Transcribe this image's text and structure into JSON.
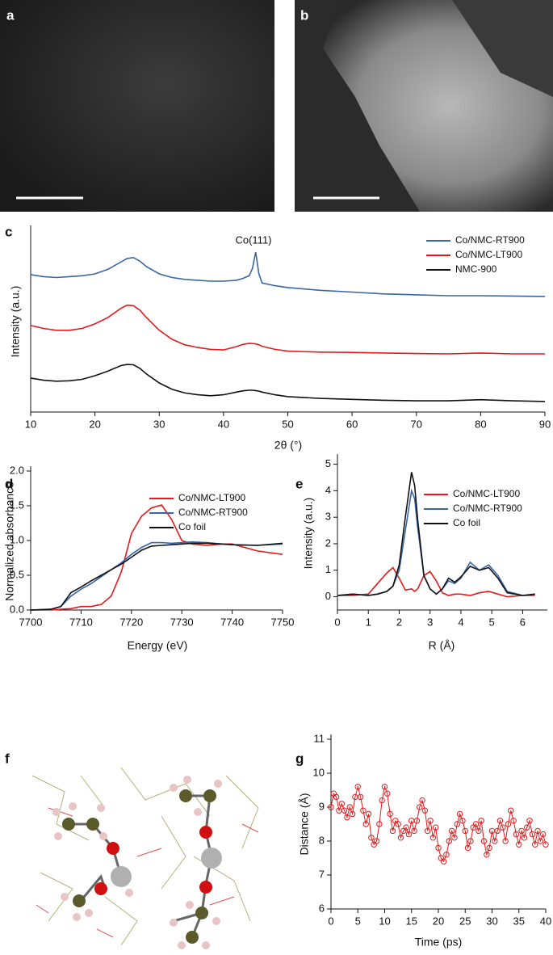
{
  "panel_labels": [
    "a",
    "b",
    "f"
  ],
  "chart_data": [
    {
      "type": "line",
      "panel": "c",
      "xlabel": "2θ (°)",
      "ylabel": "Intensity (a.u.)",
      "annotation": "Co(111)",
      "legend": "upper right",
      "xlim": [
        10,
        90
      ],
      "xticks": [
        10,
        20,
        30,
        40,
        50,
        60,
        70,
        80,
        90
      ],
      "ylim": [
        0,
        10
      ],
      "x": [
        10,
        12,
        14,
        16,
        18,
        20,
        22,
        24,
        25,
        26,
        27,
        28,
        30,
        32,
        34,
        36,
        38,
        40,
        42,
        43,
        44,
        44.5,
        45,
        45.5,
        46,
        48,
        50,
        55,
        60,
        65,
        70,
        75,
        80,
        85,
        90
      ],
      "series": [
        {
          "name": "Co/NMC-RT900",
          "color": "#3a66a6",
          "values": [
            7.56,
            7.45,
            7.4,
            7.45,
            7.5,
            7.6,
            7.85,
            8.25,
            8.45,
            8.5,
            8.3,
            8.0,
            7.6,
            7.4,
            7.3,
            7.25,
            7.2,
            7.2,
            7.25,
            7.35,
            7.5,
            7.9,
            8.8,
            7.6,
            7.1,
            6.95,
            6.85,
            6.7,
            6.6,
            6.5,
            6.45,
            6.4,
            6.4,
            6.38,
            6.36
          ]
        },
        {
          "name": "Co/NMC-LT900",
          "color": "#e41a1c",
          "values": [
            4.76,
            4.6,
            4.5,
            4.5,
            4.6,
            4.85,
            5.2,
            5.7,
            5.88,
            5.85,
            5.6,
            5.2,
            4.5,
            4.0,
            3.7,
            3.55,
            3.45,
            3.42,
            3.6,
            3.72,
            3.78,
            3.77,
            3.75,
            3.7,
            3.62,
            3.45,
            3.35,
            3.3,
            3.28,
            3.25,
            3.22,
            3.2,
            3.25,
            3.2,
            3.2
          ]
        },
        {
          "name": "NMC-900",
          "color": "#111111",
          "values": [
            1.87,
            1.75,
            1.7,
            1.72,
            1.8,
            2.0,
            2.25,
            2.55,
            2.62,
            2.6,
            2.4,
            2.1,
            1.6,
            1.25,
            1.05,
            0.95,
            0.9,
            0.95,
            1.1,
            1.17,
            1.2,
            1.2,
            1.18,
            1.15,
            1.1,
            0.95,
            0.85,
            0.75,
            0.7,
            0.65,
            0.62,
            0.62,
            0.68,
            0.62,
            0.58
          ]
        }
      ]
    },
    {
      "type": "line",
      "panel": "d",
      "xlabel": "Energy (eV)",
      "ylabel": "Normalized absorbance",
      "legend": "upper center",
      "xlim": [
        7700,
        7750
      ],
      "xticks": [
        7700,
        7710,
        7720,
        7730,
        7740,
        7750
      ],
      "ylim": [
        0,
        2.0
      ],
      "yticks": [
        {
          "value": 0,
          "label": "0.0"
        },
        0.5,
        {
          "value": 1,
          "label": "1.0"
        },
        1.5,
        {
          "value": 2,
          "label": "2.0"
        }
      ],
      "x": [
        7700,
        7704,
        7706,
        7708,
        7710,
        7712,
        7714,
        7716,
        7718,
        7720,
        7722,
        7724,
        7726,
        7728,
        7730,
        7732,
        7735,
        7738,
        7740,
        7745,
        7750
      ],
      "series": [
        {
          "name": "Co/NMC-LT900",
          "color": "#e41a1c",
          "values": [
            0,
            0,
            0.01,
            0.02,
            0.05,
            0.05,
            0.08,
            0.2,
            0.55,
            1.1,
            1.35,
            1.47,
            1.51,
            1.3,
            1.0,
            0.95,
            0.93,
            0.95,
            0.95,
            0.85,
            0.8
          ]
        },
        {
          "name": "Co/NMC-RT900",
          "color": "#3a66a6",
          "values": [
            0,
            0.01,
            0.05,
            0.2,
            0.3,
            0.38,
            0.48,
            0.58,
            0.68,
            0.8,
            0.9,
            0.97,
            0.97,
            0.96,
            0.97,
            0.98,
            0.97,
            0.95,
            0.94,
            0.93,
            0.95
          ]
        },
        {
          "name": "Co foil",
          "color": "#111111",
          "values": [
            0,
            0.01,
            0.05,
            0.25,
            0.33,
            0.42,
            0.5,
            0.58,
            0.66,
            0.76,
            0.86,
            0.92,
            0.93,
            0.94,
            0.95,
            0.96,
            0.96,
            0.95,
            0.94,
            0.93,
            0.96
          ]
        }
      ]
    },
    {
      "type": "line",
      "panel": "e",
      "xlabel": "R (Å)",
      "ylabel": "Intensity (a.u.)",
      "legend": "upper right",
      "xlim": [
        0,
        6.8
      ],
      "xticks": [
        0,
        1,
        2,
        3,
        4,
        5,
        6
      ],
      "ylim": [
        -0.5,
        5.2
      ],
      "yticks": [
        0,
        1,
        2,
        3,
        4,
        5
      ],
      "x": [
        0,
        0.5,
        1,
        1.3,
        1.6,
        1.8,
        2.0,
        2.2,
        2.4,
        2.5,
        2.6,
        2.8,
        3.0,
        3.2,
        3.4,
        3.6,
        3.8,
        4.0,
        4.3,
        4.6,
        4.9,
        5.2,
        5.5,
        6,
        6.4
      ],
      "series": [
        {
          "name": "Co/NMC-LT900",
          "color": "#e41a1c",
          "values": [
            0.05,
            0.05,
            0.1,
            0.5,
            0.9,
            1.1,
            0.7,
            0.25,
            0.3,
            0.2,
            0.3,
            0.8,
            0.95,
            0.6,
            0.15,
            0.05,
            0.1,
            0.1,
            0.05,
            0.15,
            0.2,
            0.1,
            0.0,
            0.05,
            0.05
          ]
        },
        {
          "name": "Co/NMC-RT900",
          "color": "#3a66a6",
          "values": [
            0.05,
            0.1,
            0.05,
            0.1,
            0.2,
            0.4,
            1.0,
            2.5,
            4.0,
            3.7,
            2.6,
            0.8,
            0.3,
            0.1,
            0.3,
            0.6,
            0.5,
            0.7,
            1.3,
            1.0,
            1.2,
            0.8,
            0.2,
            0.05,
            0.1
          ]
        },
        {
          "name": "Co foil",
          "color": "#111111",
          "values": [
            0.05,
            0.1,
            0.05,
            0.1,
            0.2,
            0.4,
            1.2,
            3.0,
            4.7,
            4.2,
            2.9,
            0.8,
            0.3,
            0.1,
            0.3,
            0.7,
            0.55,
            0.75,
            1.15,
            1.0,
            1.1,
            0.7,
            0.15,
            0.05,
            0.1
          ]
        }
      ]
    },
    {
      "type": "line",
      "panel": "g",
      "xlabel": "Time (ps)",
      "ylabel": "Distance (Å)",
      "marker": "circle",
      "xlim": [
        0,
        40
      ],
      "xticks": [
        0,
        5,
        10,
        15,
        20,
        25,
        30,
        35,
        40
      ],
      "ylim": [
        6,
        11
      ],
      "yticks": [
        6,
        7,
        8,
        9,
        10,
        11
      ],
      "x": [
        0,
        0.5,
        1,
        1.5,
        2,
        2.5,
        3,
        3.5,
        4,
        4.5,
        5,
        5.5,
        6,
        6.5,
        7,
        7.5,
        8,
        8.5,
        9,
        9.5,
        10,
        10.5,
        11,
        11.5,
        12,
        12.5,
        13,
        13.5,
        14,
        14.5,
        15,
        15.5,
        16,
        16.5,
        17,
        17.5,
        18,
        18.5,
        19,
        19.5,
        20,
        20.5,
        21,
        21.5,
        22,
        22.5,
        23,
        23.5,
        24,
        24.5,
        25,
        25.5,
        26,
        26.5,
        27,
        27.5,
        28,
        28.5,
        29,
        29.5,
        30,
        30.5,
        31,
        31.5,
        32,
        32.5,
        33,
        33.5,
        34,
        34.5,
        35,
        35.5,
        36,
        36.5,
        37,
        37.5,
        38,
        38.5,
        39,
        39.5,
        40
      ],
      "series": [
        {
          "color": "#e41a1c",
          "values": [
            9.0,
            9.4,
            9.3,
            8.9,
            9.1,
            8.9,
            8.7,
            9.0,
            8.8,
            9.3,
            9.6,
            9.3,
            8.9,
            8.5,
            8.8,
            8.1,
            7.9,
            8.0,
            8.5,
            9.2,
            9.6,
            9.4,
            8.8,
            8.3,
            8.6,
            8.5,
            8.1,
            8.3,
            8.4,
            8.2,
            8.6,
            8.3,
            8.6,
            9.0,
            9.2,
            8.9,
            8.3,
            8.6,
            8.1,
            8.4,
            7.8,
            7.5,
            7.4,
            7.6,
            8.0,
            8.3,
            8.1,
            8.5,
            8.8,
            8.6,
            8.3,
            7.8,
            8.0,
            8.4,
            8.5,
            8.3,
            8.6,
            8.0,
            7.6,
            7.8,
            8.3,
            8.0,
            8.3,
            8.6,
            8.4,
            8.0,
            8.5,
            8.9,
            8.6,
            8.2,
            7.9,
            8.3,
            8.1,
            8.4,
            8.6,
            8.2,
            7.9,
            8.3,
            8.0,
            8.2,
            7.9
          ]
        }
      ]
    }
  ]
}
